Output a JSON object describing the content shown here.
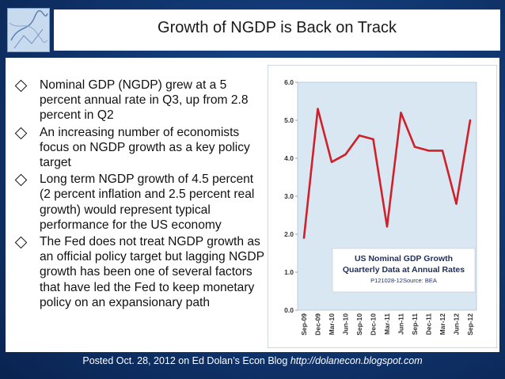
{
  "title": "Growth of NGDP is Back on Track",
  "bullets": [
    "Nominal GDP (NGDP) grew at a 5 percent annual rate in Q3, up from 2.8 percent in Q2",
    "An increasing number of economists focus on NGDP growth as a key policy target",
    "Long term NGDP growth of 4.5 percent (2 percent inflation and 2.5 percent real growth) would represent typical performance for the US economy",
    "The Fed does not treat NGDP growth as an official policy target but lagging NGDP growth has been one of several factors that have led the Fed to keep monetary policy on an expansionary path"
  ],
  "footer": {
    "text": "Posted Oct. 28, 2012 on Ed Dolan’s Econ Blog",
    "url": "http://dolanecon.blogspot.com"
  },
  "colors": {
    "line": "#d0202a",
    "plot_bg": "#d9e7f2",
    "background": "#123a76"
  },
  "chart_data": {
    "type": "line",
    "title": "US Nominal GDP Growth",
    "subtitle": "Quarterly Data at Annual Rates",
    "note": "P121028-12Source: BEA",
    "x": [
      "Sep-09",
      "Dec-09",
      "Mar-10",
      "Jun-10",
      "Sep-10",
      "Dec-10",
      "Mar-11",
      "Jun-11",
      "Sep-11",
      "Dec-11",
      "Mar-12",
      "Jun-12",
      "Sep-12"
    ],
    "series": [
      {
        "values": [
          1.9,
          5.3,
          3.9,
          4.1,
          4.6,
          4.5,
          2.2,
          5.2,
          4.3,
          4.2,
          4.2,
          2.8,
          5.0
        ]
      }
    ],
    "ylim": [
      0,
      6
    ],
    "yticks": [
      "0.0",
      "1.0",
      "2.0",
      "3.0",
      "4.0",
      "5.0",
      "6.0"
    ],
    "grid": false
  }
}
